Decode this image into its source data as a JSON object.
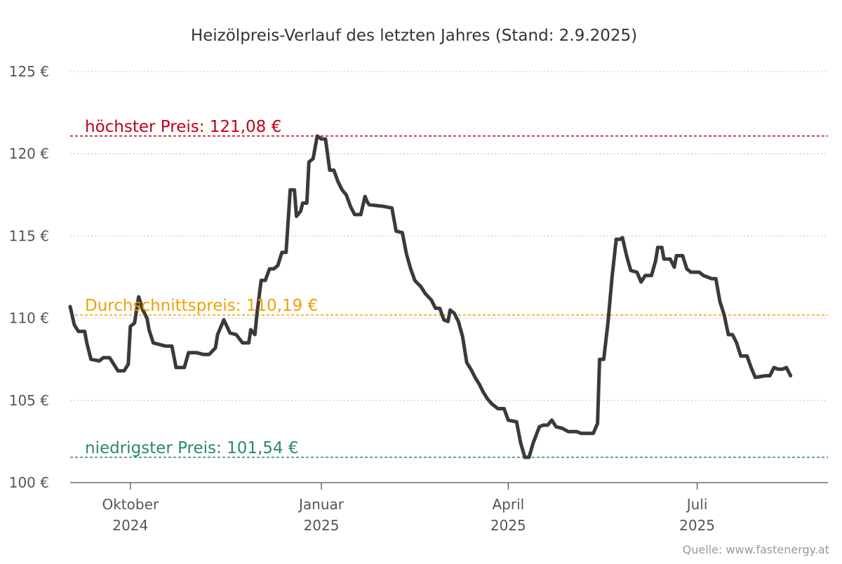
{
  "colors": {
    "series": "#3a3a3a",
    "max": "#c0001a",
    "avg": "#f0a000",
    "min": "#2b8a60"
  },
  "chart_data": {
    "type": "line",
    "title": "Heizölpreis-Verlauf des letzten Jahres (Stand: 2.9.2025)",
    "source": "Quelle: www.fastenergy.at",
    "ylim": [
      100,
      125
    ],
    "xlim": [
      "2024-09-02",
      "2025-09-02"
    ],
    "grid": true,
    "y_ticks": [
      {
        "value": 125,
        "label": "125 €"
      },
      {
        "value": 120,
        "label": "120 €"
      },
      {
        "value": 115,
        "label": "115 €"
      },
      {
        "value": 110,
        "label": "110 €"
      },
      {
        "value": 105,
        "label": "105 €"
      },
      {
        "value": 100,
        "label": "100 €"
      }
    ],
    "x_ticks": [
      {
        "date": "2024-10-01",
        "label": "Oktober",
        "label2": "2024"
      },
      {
        "date": "2025-01-01",
        "label": "Januar",
        "label2": "2025"
      },
      {
        "date": "2025-04-01",
        "label": "April",
        "label2": "2025"
      },
      {
        "date": "2025-07-01",
        "label": "Juli",
        "label2": "2025"
      }
    ],
    "reference_lines": [
      {
        "key": "max",
        "value": 121.08,
        "label": "höchster Preis: 121,08 €"
      },
      {
        "key": "avg",
        "value": 110.19,
        "label": "Durchschnittspreis: 110,19 €"
      },
      {
        "key": "min",
        "value": 101.54,
        "label": "niedrigster Preis: 101,54 €"
      }
    ],
    "series": [
      {
        "points": [
          [
            "2024-09-02",
            110.7
          ],
          [
            "2024-09-04",
            109.6
          ],
          [
            "2024-09-06",
            109.2
          ],
          [
            "2024-09-09",
            109.2
          ],
          [
            "2024-09-10",
            108.5
          ],
          [
            "2024-09-12",
            107.5
          ],
          [
            "2024-09-16",
            107.4
          ],
          [
            "2024-09-18",
            107.6
          ],
          [
            "2024-09-21",
            107.6
          ],
          [
            "2024-09-23",
            107.2
          ],
          [
            "2024-09-25",
            106.8
          ],
          [
            "2024-09-28",
            106.8
          ],
          [
            "2024-09-30",
            107.2
          ],
          [
            "2024-10-01",
            109.5
          ],
          [
            "2024-10-03",
            109.7
          ],
          [
            "2024-10-05",
            111.3
          ],
          [
            "2024-10-07",
            110.5
          ],
          [
            "2024-10-09",
            110.0
          ],
          [
            "2024-10-10",
            109.3
          ],
          [
            "2024-10-12",
            108.5
          ],
          [
            "2024-10-15",
            108.4
          ],
          [
            "2024-10-18",
            108.3
          ],
          [
            "2024-10-21",
            108.3
          ],
          [
            "2024-10-23",
            107.0
          ],
          [
            "2024-10-27",
            107.0
          ],
          [
            "2024-10-29",
            107.9
          ],
          [
            "2024-11-02",
            107.9
          ],
          [
            "2024-11-05",
            107.8
          ],
          [
            "2024-11-08",
            107.8
          ],
          [
            "2024-11-11",
            108.2
          ],
          [
            "2024-11-12",
            109.0
          ],
          [
            "2024-11-15",
            109.9
          ],
          [
            "2024-11-18",
            109.1
          ],
          [
            "2024-11-21",
            109.0
          ],
          [
            "2024-11-24",
            108.5
          ],
          [
            "2024-11-27",
            108.5
          ],
          [
            "2024-11-28",
            109.3
          ],
          [
            "2024-11-30",
            109.0
          ],
          [
            "2024-12-01",
            110.3
          ],
          [
            "2024-12-03",
            112.3
          ],
          [
            "2024-12-05",
            112.3
          ],
          [
            "2024-12-07",
            113.0
          ],
          [
            "2024-12-09",
            113.0
          ],
          [
            "2024-12-11",
            113.2
          ],
          [
            "2024-12-13",
            114.0
          ],
          [
            "2024-12-15",
            114.0
          ],
          [
            "2024-12-17",
            117.8
          ],
          [
            "2024-12-19",
            117.8
          ],
          [
            "2024-12-20",
            116.2
          ],
          [
            "2024-12-22",
            116.5
          ],
          [
            "2024-12-23",
            117.0
          ],
          [
            "2024-12-25",
            117.0
          ],
          [
            "2024-12-26",
            119.5
          ],
          [
            "2024-12-28",
            119.7
          ],
          [
            "2024-12-30",
            121.08
          ],
          [
            "2025-01-01",
            120.9
          ],
          [
            "2025-01-03",
            120.9
          ],
          [
            "2025-01-05",
            119.0
          ],
          [
            "2025-01-07",
            119.0
          ],
          [
            "2025-01-09",
            118.3
          ],
          [
            "2025-01-11",
            117.8
          ],
          [
            "2025-01-13",
            117.5
          ],
          [
            "2025-01-15",
            116.8
          ],
          [
            "2025-01-17",
            116.3
          ],
          [
            "2025-01-20",
            116.3
          ],
          [
            "2025-01-22",
            117.4
          ],
          [
            "2025-01-23",
            117.1
          ],
          [
            "2025-01-24",
            116.9
          ],
          [
            "2025-01-31",
            116.8
          ],
          [
            "2025-02-04",
            116.7
          ],
          [
            "2025-02-06",
            115.3
          ],
          [
            "2025-02-09",
            115.2
          ],
          [
            "2025-02-11",
            113.9
          ],
          [
            "2025-02-13",
            113.0
          ],
          [
            "2025-02-15",
            112.3
          ],
          [
            "2025-02-18",
            111.9
          ],
          [
            "2025-02-20",
            111.5
          ],
          [
            "2025-02-23",
            111.1
          ],
          [
            "2025-02-25",
            110.6
          ],
          [
            "2025-02-27",
            110.6
          ],
          [
            "2025-03-01",
            109.9
          ],
          [
            "2025-03-03",
            109.8
          ],
          [
            "2025-03-04",
            110.5
          ],
          [
            "2025-03-06",
            110.3
          ],
          [
            "2025-03-08",
            109.8
          ],
          [
            "2025-03-10",
            108.9
          ],
          [
            "2025-03-12",
            107.3
          ],
          [
            "2025-03-14",
            106.9
          ],
          [
            "2025-03-16",
            106.4
          ],
          [
            "2025-03-18",
            106.0
          ],
          [
            "2025-03-20",
            105.5
          ],
          [
            "2025-03-22",
            105.1
          ],
          [
            "2025-03-24",
            104.8
          ],
          [
            "2025-03-27",
            104.5
          ],
          [
            "2025-03-30",
            104.5
          ],
          [
            "2025-04-01",
            103.8
          ],
          [
            "2025-04-05",
            103.7
          ],
          [
            "2025-04-07",
            102.4
          ],
          [
            "2025-04-09",
            101.54
          ],
          [
            "2025-04-11",
            101.54
          ],
          [
            "2025-04-13",
            102.4
          ],
          [
            "2025-04-16",
            103.4
          ],
          [
            "2025-04-18",
            103.5
          ],
          [
            "2025-04-20",
            103.5
          ],
          [
            "2025-04-22",
            103.8
          ],
          [
            "2025-04-24",
            103.4
          ],
          [
            "2025-04-27",
            103.3
          ],
          [
            "2025-04-30",
            103.1
          ],
          [
            "2025-05-04",
            103.1
          ],
          [
            "2025-05-06",
            103.0
          ],
          [
            "2025-05-12",
            103.0
          ],
          [
            "2025-05-14",
            103.6
          ],
          [
            "2025-05-15",
            107.5
          ],
          [
            "2025-05-17",
            107.5
          ],
          [
            "2025-05-19",
            109.7
          ],
          [
            "2025-05-21",
            112.5
          ],
          [
            "2025-05-23",
            114.8
          ],
          [
            "2025-05-25",
            114.8
          ],
          [
            "2025-05-26",
            114.9
          ],
          [
            "2025-05-28",
            113.8
          ],
          [
            "2025-05-30",
            112.9
          ],
          [
            "2025-06-02",
            112.8
          ],
          [
            "2025-06-04",
            112.2
          ],
          [
            "2025-06-06",
            112.6
          ],
          [
            "2025-06-09",
            112.6
          ],
          [
            "2025-06-11",
            113.5
          ],
          [
            "2025-06-12",
            114.3
          ],
          [
            "2025-06-14",
            114.3
          ],
          [
            "2025-06-15",
            113.6
          ],
          [
            "2025-06-18",
            113.6
          ],
          [
            "2025-06-20",
            113.1
          ],
          [
            "2025-06-21",
            113.8
          ],
          [
            "2025-06-24",
            113.8
          ],
          [
            "2025-06-26",
            113.0
          ],
          [
            "2025-06-28",
            112.8
          ],
          [
            "2025-07-02",
            112.8
          ],
          [
            "2025-07-04",
            112.6
          ],
          [
            "2025-07-06",
            112.5
          ],
          [
            "2025-07-08",
            112.4
          ],
          [
            "2025-07-10",
            112.4
          ],
          [
            "2025-07-12",
            111.0
          ],
          [
            "2025-07-14",
            110.2
          ],
          [
            "2025-07-16",
            109.0
          ],
          [
            "2025-07-18",
            109.0
          ],
          [
            "2025-07-20",
            108.5
          ],
          [
            "2025-07-22",
            107.7
          ],
          [
            "2025-07-25",
            107.7
          ],
          [
            "2025-07-27",
            107.0
          ],
          [
            "2025-07-29",
            106.4
          ],
          [
            "2025-08-03",
            106.5
          ],
          [
            "2025-08-05",
            106.5
          ],
          [
            "2025-08-07",
            107.0
          ],
          [
            "2025-08-09",
            106.9
          ],
          [
            "2025-08-11",
            106.9
          ],
          [
            "2025-08-13",
            107.0
          ],
          [
            "2025-08-15",
            106.5
          ]
        ]
      }
    ]
  }
}
